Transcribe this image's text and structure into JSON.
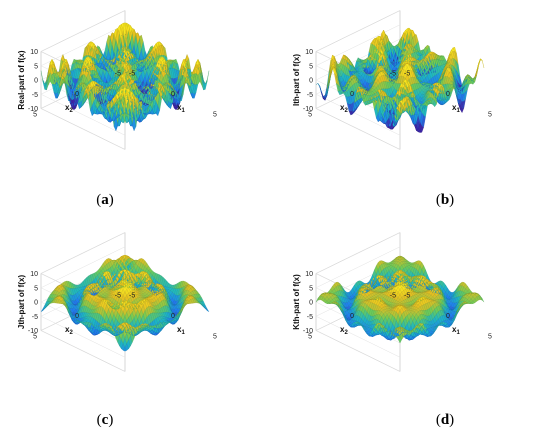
{
  "chart_data": [
    {
      "type": "surface",
      "panel_label": "a",
      "zlabel": "Real-part of f(x)",
      "xlabel": "x1",
      "ylabel": "x2",
      "xlim": [
        -5,
        5
      ],
      "ylim": [
        -5,
        5
      ],
      "zlim": [
        -10,
        10
      ],
      "xticks": [
        -5,
        0,
        5
      ],
      "yticks": [
        -5,
        0,
        5
      ],
      "zticks": [
        -10,
        -5,
        0,
        5,
        10
      ],
      "colormap": [
        "#3e26a8",
        "#1f7ff0",
        "#1cb8c4",
        "#6ccc58",
        "#e4c020",
        "#f8e620"
      ]
    },
    {
      "type": "surface",
      "panel_label": "b",
      "zlabel": "Ith-part of f(x)",
      "xlabel": "x1",
      "ylabel": "x2",
      "xlim": [
        -5,
        5
      ],
      "ylim": [
        -5,
        5
      ],
      "zlim": [
        -10,
        10
      ],
      "xticks": [
        -5,
        0,
        5
      ],
      "yticks": [
        -5,
        0,
        5
      ],
      "zticks": [
        -10,
        -5,
        0,
        5,
        10
      ],
      "colormap": [
        "#3e26a8",
        "#1f7ff0",
        "#1cb8c4",
        "#6ccc58",
        "#e4c020",
        "#f8e620"
      ]
    },
    {
      "type": "surface",
      "panel_label": "c",
      "zlabel": "Jth-part of f(x)",
      "xlabel": "x1",
      "ylabel": "x2",
      "xlim": [
        -5,
        5
      ],
      "ylim": [
        -5,
        5
      ],
      "zlim": [
        -10,
        10
      ],
      "xticks": [
        -5,
        0,
        5
      ],
      "yticks": [
        -5,
        0,
        5
      ],
      "zticks": [
        -10,
        -5,
        0,
        5,
        10
      ],
      "colormap": [
        "#3e26a8",
        "#1f7ff0",
        "#1cb8c4",
        "#6ccc58",
        "#e4c020",
        "#f8e620"
      ]
    },
    {
      "type": "surface",
      "panel_label": "d",
      "zlabel": "Kth-part of f(x)",
      "xlabel": "x1",
      "ylabel": "x2",
      "xlim": [
        -5,
        5
      ],
      "ylim": [
        -5,
        5
      ],
      "zlim": [
        -10,
        10
      ],
      "xticks": [
        -5,
        0,
        5
      ],
      "yticks": [
        -5,
        0,
        5
      ],
      "zticks": [
        -10,
        -5,
        0,
        5,
        10
      ],
      "colormap": [
        "#3e26a8",
        "#1f7ff0",
        "#1cb8c4",
        "#6ccc58",
        "#e4c020",
        "#f8e620"
      ]
    }
  ]
}
